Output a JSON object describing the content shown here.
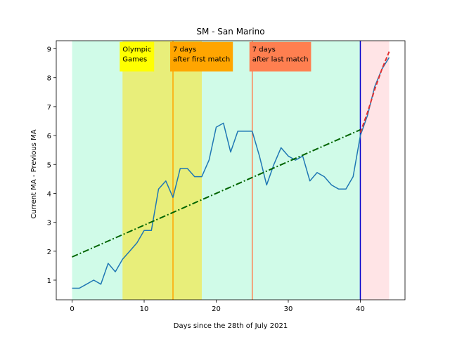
{
  "chart_data": {
    "type": "line",
    "title": "SM - San Marino",
    "xlabel": "Days since the 28th of July 2021",
    "ylabel": "Current MA - Previous MA",
    "xlim": [
      -2.2,
      46.2
    ],
    "ylim": [
      0.32,
      9.28
    ],
    "xticks": [
      0,
      10,
      20,
      30,
      40
    ],
    "yticks": [
      1,
      2,
      3,
      4,
      5,
      6,
      7,
      8,
      9
    ],
    "grid": false,
    "colors": {
      "series": "#1f77b4",
      "trend": "#006400",
      "projection_line": "#1f77b4",
      "projection_trend": "#e03030",
      "cutoff_line": "#0000cc",
      "band_main": "#d0fbe8",
      "band_olympics": "#e8ee7a",
      "band_projection": "#ffe4e6",
      "line_first_match": "#ffa500",
      "line_last_match": "#ff7f50",
      "box_olympics": "#ffff00",
      "box_first_match": "#ffa500",
      "box_last_match": "#ff7f50"
    },
    "spans": [
      {
        "x0": 0,
        "x1": 40,
        "color_key": "band_main"
      },
      {
        "x0": 7,
        "x1": 18,
        "color_key": "band_olympics"
      },
      {
        "x0": 40,
        "x1": 44,
        "color_key": "band_projection"
      }
    ],
    "vlines": [
      {
        "x": 14,
        "color_key": "line_first_match"
      },
      {
        "x": 25,
        "color_key": "line_last_match"
      },
      {
        "x": 40,
        "color_key": "cutoff_line"
      }
    ],
    "annotations": [
      {
        "lines": [
          "Olympic",
          "Games"
        ],
        "x": 7,
        "y": 8.85,
        "color_key": "box_olympics"
      },
      {
        "lines": [
          "7 days",
          "after first match"
        ],
        "x": 14,
        "y": 8.85,
        "color_key": "box_first_match"
      },
      {
        "lines": [
          "7 days",
          "after last match"
        ],
        "x": 25,
        "y": 8.85,
        "color_key": "box_last_match"
      }
    ],
    "series": [
      {
        "x": [
          0,
          1,
          2,
          3,
          4,
          5,
          6,
          7,
          8,
          9,
          10,
          11,
          12,
          13,
          14,
          15,
          16,
          17,
          18,
          19,
          20,
          21,
          22,
          23,
          24,
          25,
          26,
          27,
          28,
          29,
          30,
          31,
          32,
          33,
          34,
          35,
          36,
          37,
          38,
          39,
          40
        ],
        "y": [
          0.72,
          0.72,
          0.86,
          1.0,
          0.86,
          1.58,
          1.29,
          1.72,
          2.0,
          2.29,
          2.72,
          2.72,
          4.15,
          4.43,
          3.86,
          4.86,
          4.86,
          4.58,
          4.58,
          5.15,
          6.29,
          6.43,
          5.43,
          6.15,
          6.15,
          6.15,
          5.29,
          4.29,
          5.0,
          5.58,
          5.29,
          5.15,
          5.29,
          4.43,
          4.72,
          4.58,
          4.29,
          4.15,
          4.15,
          4.58,
          6.0
        ],
        "style": "solid",
        "color_key": "series"
      },
      {
        "x": [
          0,
          40
        ],
        "y": [
          1.8,
          6.2
        ],
        "style": "dashdot",
        "color_key": "trend"
      },
      {
        "x": [
          40,
          41,
          42,
          43,
          44
        ],
        "y": [
          6.0,
          6.7,
          7.7,
          8.3,
          8.7
        ],
        "style": "solid",
        "color_key": "projection_line"
      },
      {
        "x": [
          40,
          41,
          42,
          43,
          44
        ],
        "y": [
          6.1,
          6.8,
          7.6,
          8.3,
          8.9
        ],
        "style": "dashed",
        "color_key": "projection_trend"
      }
    ]
  }
}
